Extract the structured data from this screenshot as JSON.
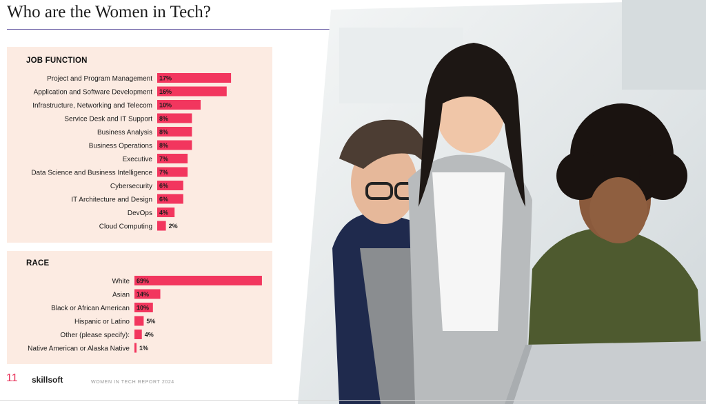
{
  "page": {
    "title": "Who are the Women in Tech?",
    "footer_number": "11",
    "footer_logo": "skillsoft",
    "footer_report": "WOMEN IN TECH REPORT 2024"
  },
  "colors": {
    "bar": "#f2365e",
    "panel": "#fcebe2",
    "accent": "#e8335a"
  },
  "chart_data": [
    {
      "type": "bar",
      "orientation": "horizontal",
      "title": "JOB FUNCTION",
      "categories": [
        "Project and Program Management",
        "Application and Software Development",
        "Infrastructure, Networking and Telecom",
        "Service Desk and IT Support",
        "Business Analysis",
        "Business Operations",
        "Executive",
        "Data Science and Business Intelligence",
        "Cybersecurity",
        "IT Architecture and Design",
        "DevOps",
        "Cloud Computing"
      ],
      "values": [
        17,
        16,
        10,
        8,
        8,
        8,
        7,
        7,
        6,
        6,
        4,
        2
      ],
      "labels": [
        "17%",
        "16%",
        "10%",
        "8%",
        "8%",
        "8%",
        "7%",
        "7%",
        "6%",
        "6%",
        "4%",
        "2%"
      ],
      "unit": "%"
    },
    {
      "type": "bar",
      "orientation": "horizontal",
      "title": "RACE",
      "categories": [
        "White",
        "Asian",
        "Black or African American",
        "Hispanic or Latino",
        "Other (please specify):",
        "Native American or Alaska Native"
      ],
      "values": [
        69,
        14,
        10,
        5,
        4,
        1
      ],
      "labels": [
        "69%",
        "14%",
        "10%",
        "5%",
        "4%",
        "1%"
      ],
      "unit": "%"
    }
  ]
}
